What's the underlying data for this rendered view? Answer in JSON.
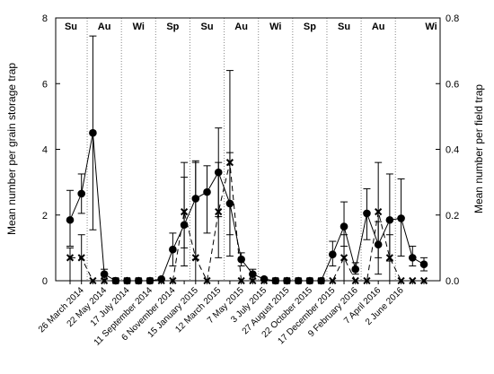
{
  "chart_data": {
    "type": "line",
    "xlabel": "",
    "ylabel": "Mean number per grain storage trap",
    "y2label": "Mean number per field trap",
    "ylim": [
      0,
      8
    ],
    "y2lim": [
      0,
      0.8
    ],
    "yticks": [
      "0",
      "2",
      "4",
      "6",
      "8"
    ],
    "y2ticks": [
      "0.0",
      "0.2",
      "0.4",
      "0.6",
      "0.8"
    ],
    "x_tick_labels": [
      "26 March 2014",
      "22 May 2014",
      "17 July 2014",
      "11 September 2014",
      "6 November 2014",
      "15 January 2015",
      "12 March 2015",
      "7 May 2015",
      "3 July 2015",
      "27 August 2015",
      "22 October 2015",
      "17 December 2015",
      "9 February 2016",
      "7 April 2016",
      "2 June 2016"
    ],
    "seasons": [
      "Su",
      "Au",
      "Wi",
      "Sp",
      "Su",
      "Au",
      "Wi",
      "Sp",
      "Su",
      "Au",
      "Wi"
    ],
    "series": [
      {
        "axis": "left",
        "style": "solid-circle",
        "points": [
          {
            "x": 0,
            "y": 1.85,
            "lo": 1.05,
            "hi": 2.75
          },
          {
            "x": 1,
            "y": 2.65,
            "lo": 2.05,
            "hi": 3.25
          },
          {
            "x": 2,
            "y": 4.5,
            "lo": 1.55,
            "hi": 7.45
          },
          {
            "x": 3,
            "y": 0.2,
            "lo": 0.05,
            "hi": 0.35
          },
          {
            "x": 4,
            "y": 0.0
          },
          {
            "x": 5,
            "y": 0.0
          },
          {
            "x": 6,
            "y": 0.0
          },
          {
            "x": 7,
            "y": 0.0
          },
          {
            "x": 8,
            "y": 0.05
          },
          {
            "x": 9,
            "y": 0.95,
            "lo": 0.45,
            "hi": 1.45
          },
          {
            "x": 10,
            "y": 1.7,
            "lo": 0.45,
            "hi": 3.15
          },
          {
            "x": 11,
            "y": 2.5,
            "lo": 0.65,
            "hi": 3.65
          },
          {
            "x": 12,
            "y": 2.7,
            "lo": 1.45,
            "hi": 3.5
          },
          {
            "x": 13,
            "y": 3.3,
            "lo": 1.95,
            "hi": 4.65
          },
          {
            "x": 14,
            "y": 2.35,
            "lo": 0.75,
            "hi": 6.4
          },
          {
            "x": 15,
            "y": 0.65,
            "lo": 0.45,
            "hi": 0.85
          },
          {
            "x": 16,
            "y": 0.2,
            "lo": 0.05,
            "hi": 0.35
          },
          {
            "x": 17,
            "y": 0.05
          },
          {
            "x": 18,
            "y": 0.0
          },
          {
            "x": 19,
            "y": 0.0
          },
          {
            "x": 20,
            "y": 0.0
          },
          {
            "x": 21,
            "y": 0.0
          },
          {
            "x": 22,
            "y": 0.0
          },
          {
            "x": 23,
            "y": 0.8,
            "lo": 0.45,
            "hi": 1.2
          },
          {
            "x": 24,
            "y": 1.65,
            "lo": 1.05,
            "hi": 2.4
          },
          {
            "x": 25,
            "y": 0.35,
            "lo": 0.2,
            "hi": 0.55
          },
          {
            "x": 26,
            "y": 2.05,
            "lo": 1.25,
            "hi": 2.8
          },
          {
            "x": 27,
            "y": 1.1,
            "lo": 0.2,
            "hi": 1.8
          },
          {
            "x": 28,
            "y": 1.85,
            "lo": 0.6,
            "hi": 3.25
          },
          {
            "x": 29,
            "y": 1.9,
            "lo": 0.75,
            "hi": 3.1
          },
          {
            "x": 30,
            "y": 0.7,
            "lo": 0.45,
            "hi": 1.05
          },
          {
            "x": 31,
            "y": 0.5,
            "lo": 0.3,
            "hi": 0.7
          }
        ]
      },
      {
        "axis": "right",
        "style": "dashed-cross",
        "points": [
          {
            "x": 0,
            "y": 0.07,
            "lo": 0.0,
            "hi": 0.1
          },
          {
            "x": 1,
            "y": 0.07,
            "lo": 0.0,
            "hi": 0.14
          },
          {
            "x": 2,
            "y": 0.0
          },
          {
            "x": 3,
            "y": 0.0
          },
          {
            "x": 4,
            "y": 0.0
          },
          {
            "x": 5,
            "y": 0.0
          },
          {
            "x": 6,
            "y": 0.0
          },
          {
            "x": 7,
            "y": 0.0
          },
          {
            "x": 8,
            "y": 0.0
          },
          {
            "x": 9,
            "y": 0.0
          },
          {
            "x": 10,
            "y": 0.21,
            "lo": 0.1,
            "hi": 0.36
          },
          {
            "x": 11,
            "y": 0.07,
            "lo": 0.0,
            "hi": 0.36
          },
          {
            "x": 12,
            "y": 0.0
          },
          {
            "x": 13,
            "y": 0.21,
            "lo": 0.07,
            "hi": 0.36
          },
          {
            "x": 14,
            "y": 0.36,
            "lo": 0.14,
            "hi": 0.39
          },
          {
            "x": 15,
            "y": 0.0
          },
          {
            "x": 16,
            "y": 0.0
          },
          {
            "x": 17,
            "y": 0.0
          },
          {
            "x": 18,
            "y": 0.0
          },
          {
            "x": 19,
            "y": 0.0
          },
          {
            "x": 20,
            "y": 0.0
          },
          {
            "x": 21,
            "y": 0.0
          },
          {
            "x": 22,
            "y": 0.0
          },
          {
            "x": 23,
            "y": 0.0
          },
          {
            "x": 24,
            "y": 0.07,
            "lo": 0.0,
            "hi": 0.14
          },
          {
            "x": 25,
            "y": 0.0
          },
          {
            "x": 26,
            "y": 0.0
          },
          {
            "x": 27,
            "y": 0.21,
            "lo": 0.07,
            "hi": 0.36
          },
          {
            "x": 28,
            "y": 0.07,
            "lo": 0.0,
            "hi": 0.14
          },
          {
            "x": 29,
            "y": 0.0
          },
          {
            "x": 30,
            "y": 0.0
          },
          {
            "x": 31,
            "y": 0.0
          }
        ]
      }
    ],
    "grid": false
  }
}
